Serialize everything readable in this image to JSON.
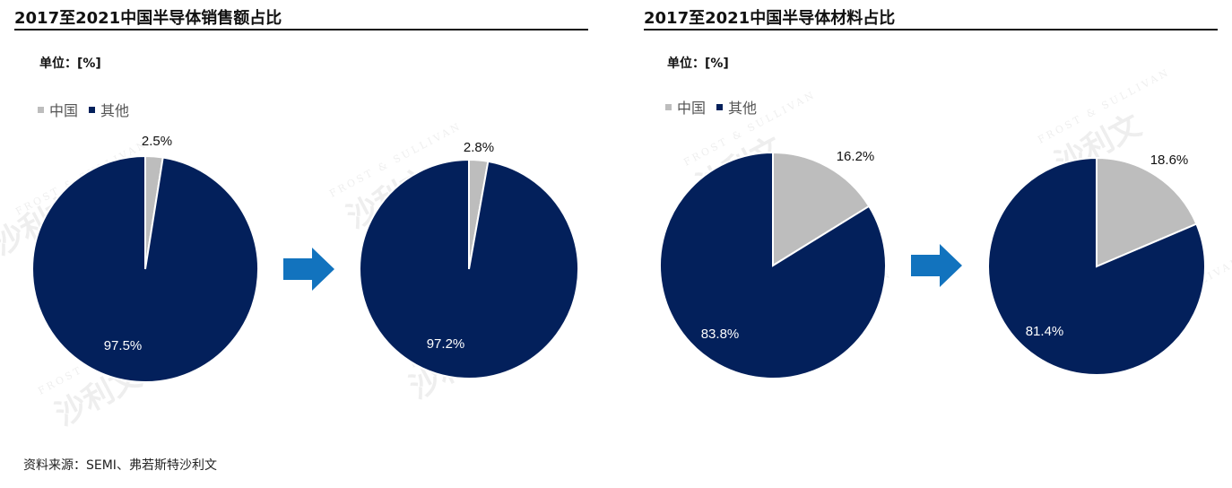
{
  "source": "资料来源：SEMI、弗若斯特沙利文",
  "watermark": {
    "en": "FROST & SULLIVAN",
    "cn": "沙利文"
  },
  "colors": {
    "china": "#bdbdbd",
    "other": "#03205b",
    "arrow": "#1273be"
  },
  "legend": [
    {
      "label": "中国",
      "color": "#bdbdbd"
    },
    {
      "label": "其他",
      "color": "#03205b"
    }
  ],
  "panels": [
    {
      "title": "2017至2021中国半导体销售额占比",
      "unit": "单位：[%]"
    },
    {
      "title": "2017至2021中国半导体材料占比",
      "unit": "单位：[%]"
    }
  ],
  "chart_data": [
    {
      "type": "pie",
      "title": "",
      "slices": [
        {
          "label": "中国",
          "value": 2.5,
          "display": "2.5%"
        },
        {
          "label": "其他",
          "value": 97.5,
          "display": "97.5%"
        }
      ]
    },
    {
      "type": "pie",
      "title": "",
      "slices": [
        {
          "label": "中国",
          "value": 2.8,
          "display": "2.8%"
        },
        {
          "label": "其他",
          "value": 97.2,
          "display": "97.2%"
        }
      ]
    },
    {
      "type": "pie",
      "title": "",
      "slices": [
        {
          "label": "中国",
          "value": 16.2,
          "display": "16.2%"
        },
        {
          "label": "其他",
          "value": 83.8,
          "display": "83.8%"
        }
      ]
    },
    {
      "type": "pie",
      "title": "",
      "slices": [
        {
          "label": "中国",
          "value": 18.6,
          "display": "18.6%"
        },
        {
          "label": "其他",
          "value": 81.4,
          "display": "81.4%"
        }
      ]
    }
  ]
}
